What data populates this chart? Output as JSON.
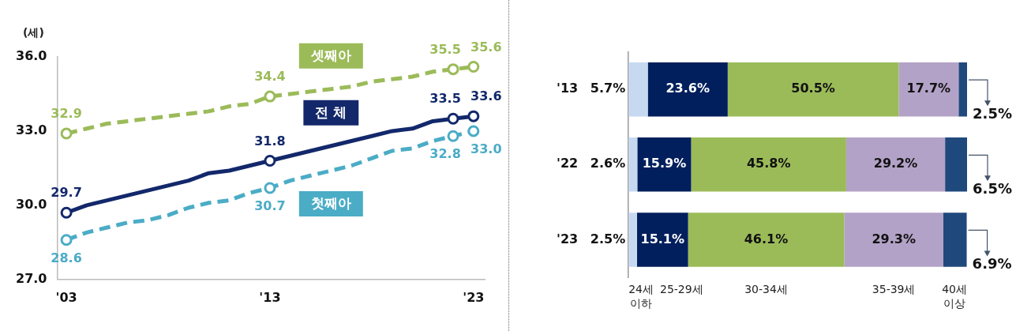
{
  "chart_data": [
    {
      "type": "line",
      "ylabel": "(세)",
      "x": [
        2003,
        2004,
        2005,
        2006,
        2007,
        2008,
        2009,
        2010,
        2011,
        2012,
        2013,
        2014,
        2015,
        2016,
        2017,
        2018,
        2019,
        2020,
        2021,
        2022,
        2023
      ],
      "xlim": [
        2002.55,
        2023.55
      ],
      "ylim": [
        27,
        36
      ],
      "xticks": [
        {
          "value": 2003,
          "label": "'03"
        },
        {
          "value": 2013,
          "label": "'13"
        },
        {
          "value": 2023,
          "label": "'23"
        }
      ],
      "yticks": [
        {
          "value": 27,
          "label": "27.0"
        },
        {
          "value": 30,
          "label": "30.0"
        },
        {
          "value": 33,
          "label": "33.0"
        },
        {
          "value": 36,
          "label": "36.0"
        }
      ],
      "grid": false,
      "series": [
        {
          "name": "셋째아",
          "color": "#9bbb59",
          "line_style": "dashed",
          "values": [
            32.9,
            33.1,
            33.3,
            33.4,
            33.5,
            33.6,
            33.7,
            33.8,
            34.0,
            34.1,
            34.4,
            34.5,
            34.6,
            34.7,
            34.8,
            35.0,
            35.1,
            35.2,
            35.4,
            35.5,
            35.6
          ],
          "value_labels": [
            "32.9",
            null,
            null,
            null,
            null,
            null,
            null,
            null,
            null,
            null,
            "34.4",
            null,
            null,
            null,
            null,
            null,
            null,
            null,
            null,
            "35.5",
            "35.6"
          ]
        },
        {
          "name": "전 체",
          "color": "#13286b",
          "line_style": "solid",
          "values": [
            29.7,
            30.0,
            30.2,
            30.4,
            30.6,
            30.8,
            31.0,
            31.3,
            31.4,
            31.6,
            31.8,
            32.0,
            32.2,
            32.4,
            32.6,
            32.8,
            33.0,
            33.1,
            33.4,
            33.5,
            33.6
          ],
          "value_labels": [
            "29.7",
            null,
            null,
            null,
            null,
            null,
            null,
            null,
            null,
            null,
            "31.8",
            null,
            null,
            null,
            null,
            null,
            null,
            null,
            null,
            "33.5",
            "33.6"
          ]
        },
        {
          "name": "첫째아",
          "color": "#4bacc6",
          "line_style": "dashed",
          "values": [
            28.6,
            28.9,
            29.1,
            29.3,
            29.4,
            29.6,
            29.9,
            30.1,
            30.2,
            30.5,
            30.7,
            31.0,
            31.2,
            31.4,
            31.6,
            31.9,
            32.2,
            32.3,
            32.6,
            32.8,
            33.0
          ],
          "value_labels": [
            "28.6",
            null,
            null,
            null,
            null,
            null,
            null,
            null,
            null,
            null,
            "30.7",
            null,
            null,
            null,
            null,
            null,
            null,
            null,
            null,
            "32.8",
            "33.0"
          ]
        }
      ]
    },
    {
      "type": "bar",
      "orientation": "horizontal",
      "stacked": true,
      "categories": [
        "'13",
        "'22",
        "'23"
      ],
      "series": [
        {
          "name": "24세 이하",
          "color": "#c6d9f1",
          "values": [
            5.7,
            2.6,
            2.5
          ],
          "value_labels": [
            "5.7%",
            "2.6%",
            "2.5%"
          ]
        },
        {
          "name": "25-29세",
          "color": "#001f5c",
          "values": [
            23.6,
            15.9,
            15.1
          ],
          "value_labels": [
            "23.6%",
            "15.9%",
            "15.1%"
          ]
        },
        {
          "name": "30-34세",
          "color": "#9bbb59",
          "values": [
            50.5,
            45.8,
            46.1
          ],
          "value_labels": [
            "50.5%",
            "45.8%",
            "46.1%"
          ]
        },
        {
          "name": "35-39세",
          "color": "#b3a2c7",
          "values": [
            17.7,
            29.2,
            29.3
          ],
          "value_labels": [
            "17.7%",
            "29.2%",
            "29.3%"
          ]
        },
        {
          "name": "40세 이상",
          "color": "#1f497d",
          "values": [
            2.5,
            6.5,
            6.9
          ],
          "value_labels": [
            "2.5%",
            "6.5%",
            "6.9%"
          ]
        }
      ]
    }
  ]
}
